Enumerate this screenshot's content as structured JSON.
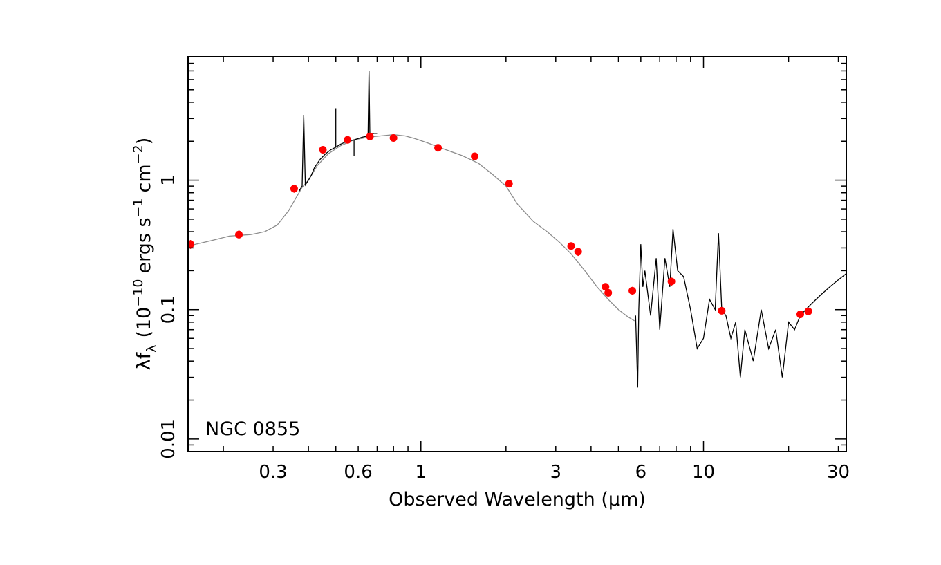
{
  "chart_data": {
    "type": "scatter",
    "title": "",
    "annotation": "NGC 0855",
    "xlabel": "Observed Wavelength (μm)",
    "ylabel": {
      "main": "λf",
      "sub": "λ",
      "units_pre": "(10",
      "units_exp": "−10",
      "units_mid": "ergs s",
      "units_exp2": "−1",
      "units_mid2": "cm",
      "units_exp3": "−2",
      "units_post": ")"
    },
    "x_scale": "log",
    "y_scale": "log",
    "xlim": [
      0.15,
      32
    ],
    "ylim": [
      0.008,
      9
    ],
    "x_tick_labels": [
      {
        "value": 0.3,
        "label": "0.3"
      },
      {
        "value": 0.6,
        "label": "0.6"
      },
      {
        "value": 1,
        "label": "1"
      },
      {
        "value": 3,
        "label": "3"
      },
      {
        "value": 6,
        "label": "6"
      },
      {
        "value": 10,
        "label": "10"
      },
      {
        "value": 30,
        "label": "30"
      }
    ],
    "y_tick_labels": [
      {
        "value": 0.01,
        "label": "0.01"
      },
      {
        "value": 0.1,
        "label": "0.1"
      },
      {
        "value": 1,
        "label": "1"
      }
    ],
    "series": [
      {
        "name": "",
        "kind": "model",
        "color": "#8c8c8c",
        "x": [
          0.15,
          0.18,
          0.21,
          0.25,
          0.28,
          0.31,
          0.34,
          0.36,
          0.38,
          0.4,
          0.43,
          0.47,
          0.52,
          0.58,
          0.65,
          0.72,
          0.8,
          0.88,
          0.95,
          1.05,
          1.2,
          1.4,
          1.6,
          1.8,
          2.0,
          2.2,
          2.5,
          2.8,
          3.1,
          3.4,
          3.8,
          4.2,
          4.6,
          5.0,
          5.4,
          5.7
        ],
        "y": [
          0.31,
          0.34,
          0.37,
          0.38,
          0.4,
          0.45,
          0.58,
          0.72,
          0.88,
          1.0,
          1.3,
          1.6,
          1.85,
          2.05,
          2.15,
          2.2,
          2.25,
          2.2,
          2.1,
          1.95,
          1.75,
          1.55,
          1.35,
          1.1,
          0.9,
          0.65,
          0.48,
          0.4,
          0.33,
          0.27,
          0.2,
          0.15,
          0.12,
          0.1,
          0.088,
          0.082
        ]
      },
      {
        "name": "",
        "kind": "optical-spectrum",
        "color": "#000000",
        "x": [
          0.37,
          0.38,
          0.385,
          0.39,
          0.4,
          0.41,
          0.42,
          0.43,
          0.44,
          0.46,
          0.48,
          0.5,
          0.5,
          0.5,
          0.52,
          0.55,
          0.58,
          0.58,
          0.58,
          0.6,
          0.62,
          0.65,
          0.655,
          0.66,
          0.68,
          0.7
        ],
        "y": [
          0.82,
          0.9,
          3.2,
          0.92,
          1.0,
          1.1,
          1.25,
          1.35,
          1.45,
          1.6,
          1.72,
          1.8,
          3.6,
          1.8,
          1.9,
          2.0,
          2.05,
          1.55,
          2.05,
          2.1,
          2.15,
          2.2,
          7.0,
          2.2,
          2.3,
          2.3
        ]
      },
      {
        "name": "",
        "kind": "ir-spectrum",
        "color": "#000000",
        "x": [
          5.75,
          5.85,
          5.9,
          6.0,
          6.1,
          6.2,
          6.5,
          6.8,
          7.0,
          7.3,
          7.6,
          7.8,
          8.1,
          8.5,
          9.0,
          9.5,
          10.0,
          10.5,
          11.0,
          11.3,
          11.6,
          12.0,
          12.5,
          13.0,
          13.5,
          14.0,
          15.0,
          16.0,
          17.0,
          18.0,
          19.0,
          20.0,
          21.0,
          22.0,
          23.0,
          24.0,
          26.0,
          28.0,
          30.0,
          32.0
        ],
        "y": [
          0.09,
          0.025,
          0.1,
          0.32,
          0.15,
          0.2,
          0.09,
          0.25,
          0.07,
          0.25,
          0.15,
          0.42,
          0.2,
          0.18,
          0.1,
          0.05,
          0.06,
          0.12,
          0.1,
          0.39,
          0.1,
          0.09,
          0.06,
          0.08,
          0.03,
          0.07,
          0.04,
          0.1,
          0.05,
          0.07,
          0.03,
          0.08,
          0.07,
          0.09,
          0.1,
          0.11,
          0.13,
          0.15,
          0.17,
          0.19
        ]
      },
      {
        "name": "",
        "kind": "photometry",
        "color": "#ff0000",
        "x": [
          0.153,
          0.227,
          0.356,
          0.45,
          0.55,
          0.66,
          0.8,
          1.15,
          1.55,
          2.05,
          3.4,
          3.6,
          4.5,
          4.6,
          5.6,
          7.7,
          11.6,
          22.0,
          23.5
        ],
        "y": [
          0.32,
          0.38,
          0.86,
          1.72,
          2.05,
          2.18,
          2.12,
          1.78,
          1.53,
          0.94,
          0.31,
          0.28,
          0.15,
          0.135,
          0.14,
          0.165,
          0.098,
          0.092,
          0.097
        ],
        "err": [
          0.025,
          0.03,
          0.06,
          0.08,
          0.08,
          0.08,
          0.08,
          0.06,
          0.06,
          0.05,
          0.02,
          0.02,
          0.01,
          0.01,
          0.01,
          0.012,
          0.006,
          0.006,
          0.006
        ]
      }
    ],
    "grid": false,
    "legend": "none"
  }
}
